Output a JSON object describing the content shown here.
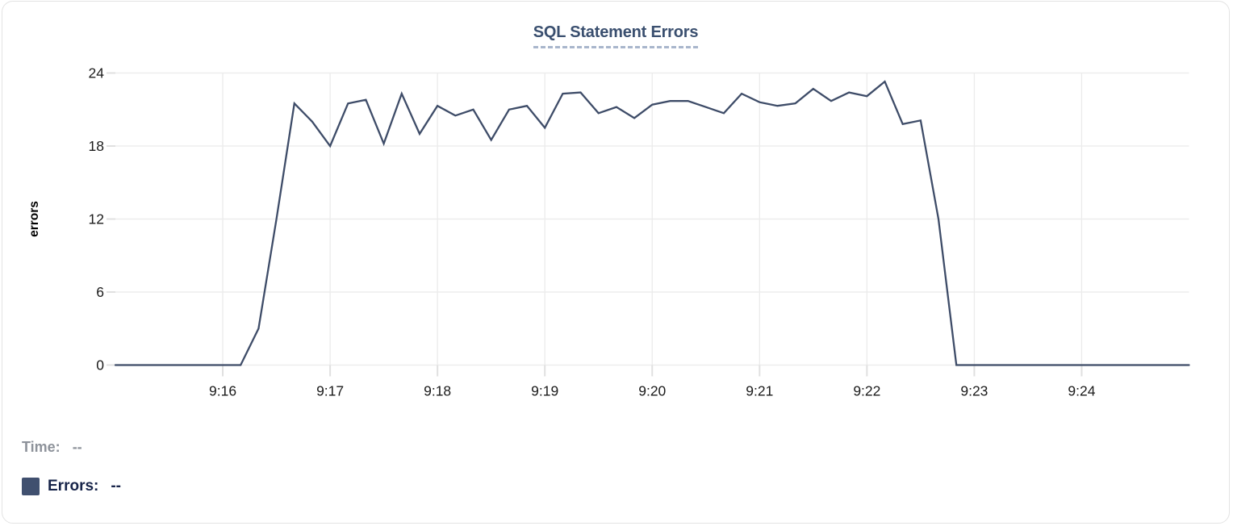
{
  "chart_data": {
    "type": "line",
    "title": "SQL Statement Errors",
    "xlabel": "",
    "ylabel": "errors",
    "x_start_time": "9:15:00",
    "x_end_time": "9:25:00",
    "point_interval_seconds": 10,
    "ylim": [
      0,
      24
    ],
    "yticks": [
      0,
      6,
      12,
      18,
      24
    ],
    "grid": true,
    "xticks": [
      {
        "pos": 6,
        "label": "9:16"
      },
      {
        "pos": 12,
        "label": "9:17"
      },
      {
        "pos": 18,
        "label": "9:18"
      },
      {
        "pos": 24,
        "label": "9:19"
      },
      {
        "pos": 30,
        "label": "9:20"
      },
      {
        "pos": 36,
        "label": "9:21"
      },
      {
        "pos": 42,
        "label": "9:22"
      },
      {
        "pos": 48,
        "label": "9:23"
      },
      {
        "pos": 54,
        "label": "9:24"
      }
    ],
    "series": [
      {
        "name": "Errors",
        "color": "#3e4c68",
        "values": [
          0,
          0,
          0,
          0,
          0,
          0,
          0,
          0,
          3,
          12,
          21.5,
          20,
          18,
          21.5,
          21.8,
          18.2,
          22.3,
          19,
          21.3,
          20.5,
          21,
          18.5,
          21,
          21.3,
          19.5,
          22.3,
          22.4,
          20.7,
          21.2,
          20.3,
          21.4,
          21.7,
          21.7,
          21.2,
          20.7,
          22.3,
          21.6,
          21.3,
          21.5,
          22.7,
          21.7,
          22.4,
          22.1,
          23.3,
          19.8,
          20.1,
          12,
          0,
          0,
          0,
          0,
          0,
          0,
          0,
          0,
          0,
          0,
          0,
          0,
          0,
          0
        ]
      }
    ],
    "legend_position": "bottom-left"
  },
  "legend": {
    "time_label": "Time:",
    "time_value": "--",
    "errors_label": "Errors:",
    "errors_value": "--",
    "errors_swatch_color": "#40506f"
  },
  "colors": {
    "line": "#3e4c68",
    "title_text": "#3a4f6f",
    "title_underline": "#a9b6cc",
    "gridline": "#ebebeb",
    "tick_mark": "#e0e0e0",
    "tick_label": "#1b1b1b",
    "card_border": "#e3e3e3"
  }
}
